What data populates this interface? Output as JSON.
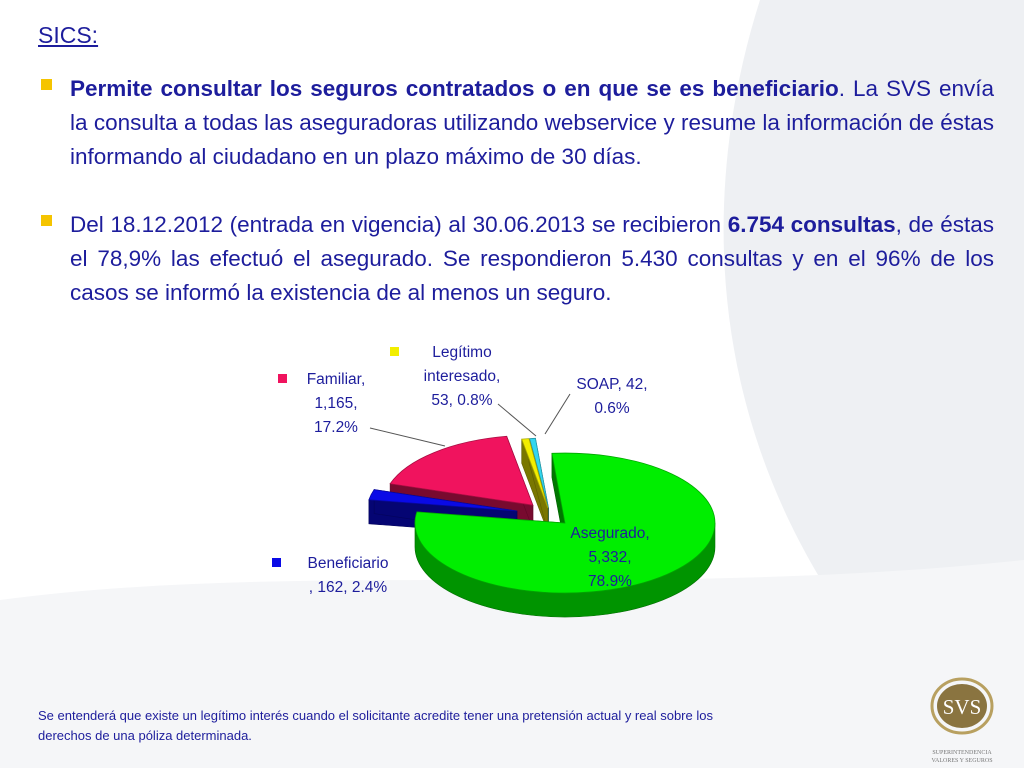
{
  "slide": {
    "title": "SICS:",
    "bullet1": {
      "bold": "Permite consultar los seguros contratados o en que se es beneficiario",
      "rest": ". La SVS envía la consulta a todas las aseguradoras utilizando webservice y resume la información de éstas informando  al ciudadano en un plazo máximo de 30 días."
    },
    "bullet2": {
      "pre": "Del 18.12.2012 (entrada en vigencia) al 30.06.2013 se recibieron ",
      "bold": "6.754 consultas",
      "rest": ", de éstas el 78,9% las efectuó el asegurado.  Se respondieron 5.430 consultas y en el 96% de los casos se informó la existencia de al menos un seguro."
    },
    "footnote_line1": "Se entenderá que existe un legítimo interés cuando el solicitante acredite tener una pretensión actual y real sobre los",
    "footnote_line2": "derechos de una póliza determinada.",
    "logo": {
      "text": "SVS",
      "sub1": "SUPERINTENDENCIA",
      "sub2": "VALORES Y SEGUROS"
    },
    "colors": {
      "text": "#1d1d9c",
      "bullet": "#f5c400"
    }
  },
  "chart_data": {
    "type": "pie",
    "title": "",
    "three_d": true,
    "legend": "none",
    "slices": [
      {
        "name": "Asegurado",
        "value": 5332,
        "percent": 78.9,
        "color": "#00ee00",
        "label_lines": [
          "Asegurado,",
          "5,332,",
          "78.9%"
        ],
        "marker": false
      },
      {
        "name": "Beneficiario",
        "value": 162,
        "percent": 2.4,
        "color": "#0a0ae6",
        "label_lines": [
          "Beneficiario",
          ", 162, 2.4%"
        ],
        "marker": true
      },
      {
        "name": "Familiar",
        "value": 1165,
        "percent": 17.2,
        "color": "#f0135e",
        "label_lines": [
          "Familiar,",
          "1,165,",
          "17.2%"
        ],
        "marker": true
      },
      {
        "name": "Legítimo interesado",
        "value": 53,
        "percent": 0.8,
        "color": "#f2ee00",
        "label_lines": [
          "Legítimo",
          "interesado,",
          "53, 0.8%"
        ],
        "marker": true
      },
      {
        "name": "SOAP",
        "value": 42,
        "percent": 0.6,
        "color": "#33d6ee",
        "label_lines": [
          "SOAP, 42,",
          "0.6%"
        ],
        "marker": false
      }
    ]
  }
}
